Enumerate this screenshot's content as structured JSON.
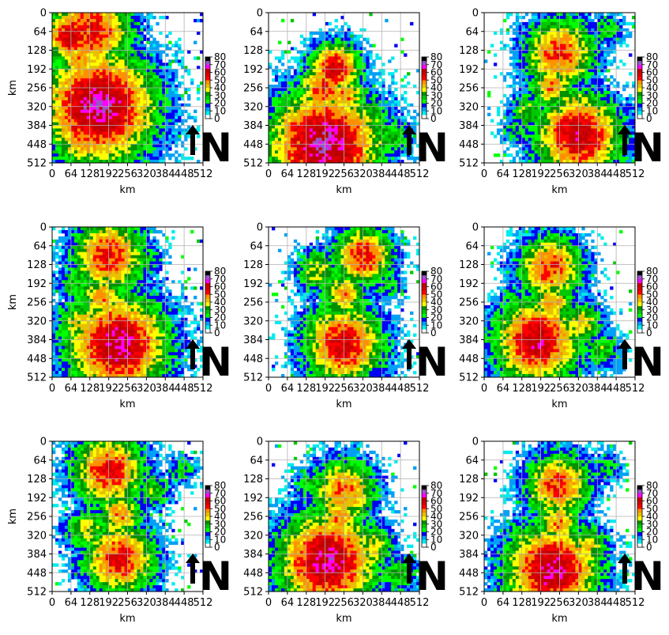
{
  "chart_data": {
    "type": "heatmap",
    "layout": {
      "rows": 3,
      "cols": 3
    },
    "xlabel": "km",
    "ylabel": "km",
    "xlim": [
      0,
      512
    ],
    "ylim": [
      512,
      0
    ],
    "xticks": [
      "0",
      "64",
      "128",
      "192",
      "256",
      "320",
      "384",
      "448",
      "512"
    ],
    "yticks": [
      "0",
      "64",
      "128",
      "192",
      "256",
      "320",
      "384",
      "448",
      "512"
    ],
    "grid": true,
    "colorbar": {
      "range": [
        0,
        80
      ],
      "ticks": [
        "0",
        "10",
        "20",
        "30",
        "40",
        "50",
        "60",
        "70",
        "80"
      ],
      "colors": [
        "#ffffff",
        "#00ecec",
        "#01a0f6",
        "#0000f6",
        "#00ff00",
        "#00c800",
        "#009000",
        "#ffff00",
        "#e7c000",
        "#ff9000",
        "#ff0000",
        "#d60000",
        "#c00000",
        "#ff00ff",
        "#9955c9",
        "#000000"
      ]
    },
    "north_arrow": {
      "label": "N"
    },
    "panels": [
      {
        "row": 0,
        "col": 0,
        "cells": [
          [
            128,
            64,
            26,
            36
          ],
          [
            96,
            160,
            14,
            30
          ],
          [
            150,
            224,
            12,
            24
          ],
          [
            160,
            320,
            34,
            44
          ],
          [
            120,
            400,
            24,
            34
          ],
          [
            224,
            256,
            12,
            20
          ],
          [
            64,
            80,
            16,
            40
          ]
        ]
      },
      {
        "row": 0,
        "col": 1,
        "cells": [
          [
            224,
            192,
            16,
            38
          ],
          [
            256,
            288,
            14,
            30
          ],
          [
            192,
            450,
            34,
            44
          ],
          [
            112,
            400,
            20,
            34
          ],
          [
            330,
            360,
            14,
            24
          ],
          [
            420,
            420,
            12,
            20
          ],
          [
            190,
            260,
            16,
            34
          ]
        ]
      },
      {
        "row": 0,
        "col": 2,
        "cells": [
          [
            256,
            140,
            22,
            34
          ],
          [
            230,
            250,
            14,
            30
          ],
          [
            320,
            420,
            26,
            40
          ],
          [
            150,
            340,
            12,
            22
          ],
          [
            300,
            320,
            14,
            26
          ],
          [
            420,
            60,
            10,
            18
          ],
          [
            110,
            400,
            10,
            16
          ]
        ]
      },
      {
        "row": 1,
        "col": 0,
        "cells": [
          [
            192,
            100,
            22,
            36
          ],
          [
            170,
            240,
            14,
            30
          ],
          [
            224,
            400,
            30,
            42
          ],
          [
            100,
            330,
            16,
            26
          ],
          [
            310,
            110,
            12,
            18
          ],
          [
            80,
            200,
            12,
            18
          ]
        ]
      },
      {
        "row": 1,
        "col": 1,
        "cells": [
          [
            320,
            100,
            18,
            36
          ],
          [
            256,
            230,
            14,
            30
          ],
          [
            256,
            400,
            24,
            38
          ],
          [
            170,
            150,
            14,
            24
          ],
          [
            150,
            330,
            10,
            18
          ],
          [
            400,
            200,
            10,
            16
          ]
        ]
      },
      {
        "row": 1,
        "col": 2,
        "cells": [
          [
            224,
            140,
            20,
            34
          ],
          [
            230,
            260,
            14,
            30
          ],
          [
            180,
            390,
            26,
            40
          ],
          [
            330,
            330,
            14,
            26
          ],
          [
            400,
            420,
            12,
            20
          ],
          [
            100,
            250,
            10,
            16
          ]
        ]
      },
      {
        "row": 2,
        "col": 0,
        "cells": [
          [
            192,
            100,
            22,
            36
          ],
          [
            230,
            250,
            14,
            30
          ],
          [
            230,
            400,
            22,
            36
          ],
          [
            120,
            300,
            14,
            24
          ],
          [
            340,
            170,
            12,
            20
          ],
          [
            440,
            100,
            10,
            16
          ]
        ]
      },
      {
        "row": 2,
        "col": 1,
        "cells": [
          [
            256,
            170,
            20,
            32
          ],
          [
            240,
            260,
            14,
            30
          ],
          [
            200,
            410,
            30,
            42
          ],
          [
            350,
            360,
            14,
            26
          ],
          [
            440,
            450,
            12,
            20
          ],
          [
            150,
            150,
            12,
            18
          ]
        ]
      },
      {
        "row": 2,
        "col": 2,
        "cells": [
          [
            250,
            150,
            20,
            34
          ],
          [
            250,
            280,
            14,
            30
          ],
          [
            230,
            440,
            28,
            42
          ],
          [
            350,
            360,
            14,
            26
          ],
          [
            130,
            330,
            12,
            20
          ],
          [
            410,
            90,
            10,
            16
          ]
        ]
      }
    ]
  }
}
